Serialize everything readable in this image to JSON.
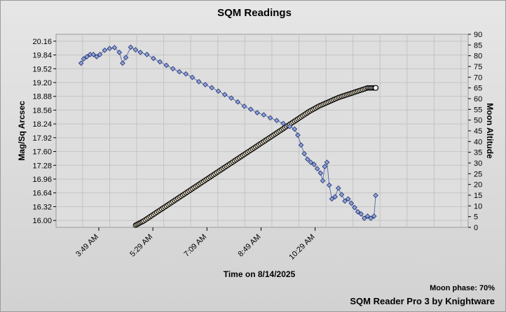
{
  "chart_data": {
    "type": "scatter",
    "title": "SQM Readings",
    "xlabel": "Time on 8/14/2025",
    "ylabel_left": "Mag/Sq Arcsec",
    "ylabel_right": "Moon Altitude",
    "x_ticks": [
      "3:49 AM",
      "5:29 AM",
      "7:09 AM",
      "8:49 AM",
      "10:29 AM"
    ],
    "y_left_ticks": [
      "20.16",
      "19.84",
      "19.52",
      "19.20",
      "18.88",
      "18.56",
      "18.24",
      "17.92",
      "17.60",
      "17.28",
      "16.96",
      "16.64",
      "16.32",
      "16.00"
    ],
    "y_left_range": [
      15.84,
      20.32
    ],
    "y_right_ticks": [
      "0",
      "5",
      "10",
      "15",
      "20",
      "25",
      "30",
      "35",
      "40",
      "45",
      "50",
      "55",
      "60",
      "65",
      "70",
      "75",
      "80",
      "85",
      "90"
    ],
    "y_right_range": [
      0,
      90
    ],
    "x_range_hours": [
      2.5,
      15.2
    ],
    "grid": true,
    "series": [
      {
        "axis": "left",
        "color": "#5b6fb0",
        "marker": "diamond",
        "points": [
          [
            3.27,
            19.65
          ],
          [
            3.35,
            19.75
          ],
          [
            3.45,
            19.8
          ],
          [
            3.55,
            19.85
          ],
          [
            3.65,
            19.85
          ],
          [
            3.75,
            19.8
          ],
          [
            3.85,
            19.85
          ],
          [
            4.0,
            19.95
          ],
          [
            4.15,
            19.99
          ],
          [
            4.3,
            20.01
          ],
          [
            4.45,
            19.9
          ],
          [
            4.55,
            19.65
          ],
          [
            4.65,
            19.78
          ],
          [
            4.8,
            20.02
          ],
          [
            4.95,
            19.96
          ],
          [
            5.1,
            19.9
          ],
          [
            5.3,
            19.85
          ],
          [
            5.5,
            19.76
          ],
          [
            5.7,
            19.68
          ],
          [
            5.9,
            19.6
          ],
          [
            6.1,
            19.52
          ],
          [
            6.3,
            19.45
          ],
          [
            6.5,
            19.4
          ],
          [
            6.7,
            19.32
          ],
          [
            6.9,
            19.22
          ],
          [
            7.1,
            19.15
          ],
          [
            7.3,
            19.08
          ],
          [
            7.5,
            19.0
          ],
          [
            7.7,
            18.92
          ],
          [
            7.9,
            18.84
          ],
          [
            8.1,
            18.75
          ],
          [
            8.3,
            18.65
          ],
          [
            8.5,
            18.58
          ],
          [
            8.7,
            18.5
          ],
          [
            8.9,
            18.45
          ],
          [
            9.1,
            18.38
          ],
          [
            9.3,
            18.32
          ],
          [
            9.5,
            18.25
          ],
          [
            9.7,
            18.18
          ],
          [
            9.85,
            18.12
          ],
          [
            9.95,
            17.98
          ],
          [
            10.05,
            17.75
          ],
          [
            10.15,
            17.55
          ],
          [
            10.25,
            17.42
          ],
          [
            10.35,
            17.35
          ],
          [
            10.45,
            17.3
          ],
          [
            10.55,
            17.2
          ],
          [
            10.65,
            17.1
          ],
          [
            10.72,
            16.92
          ],
          [
            10.78,
            17.25
          ],
          [
            10.85,
            17.35
          ],
          [
            10.92,
            16.82
          ],
          [
            11.0,
            16.5
          ],
          [
            11.1,
            16.55
          ],
          [
            11.2,
            16.75
          ],
          [
            11.3,
            16.6
          ],
          [
            11.4,
            16.45
          ],
          [
            11.5,
            16.5
          ],
          [
            11.6,
            16.4
          ],
          [
            11.7,
            16.3
          ],
          [
            11.8,
            16.2
          ],
          [
            11.9,
            16.15
          ],
          [
            12.0,
            16.05
          ],
          [
            12.1,
            16.1
          ],
          [
            12.2,
            16.05
          ],
          [
            12.3,
            16.1
          ],
          [
            12.35,
            16.58
          ]
        ]
      },
      {
        "axis": "right",
        "color": "#000000",
        "marker": "circle-halo",
        "points": [
          [
            4.95,
            1
          ],
          [
            5.2,
            3
          ],
          [
            5.5,
            6
          ],
          [
            5.8,
            9
          ],
          [
            6.1,
            12
          ],
          [
            6.4,
            15
          ],
          [
            6.7,
            18
          ],
          [
            7.0,
            21
          ],
          [
            7.3,
            24
          ],
          [
            7.6,
            27
          ],
          [
            7.9,
            30
          ],
          [
            8.2,
            33
          ],
          [
            8.5,
            36
          ],
          [
            8.8,
            39
          ],
          [
            9.1,
            42
          ],
          [
            9.4,
            45
          ],
          [
            9.7,
            48
          ],
          [
            10.0,
            51
          ],
          [
            10.3,
            54
          ],
          [
            10.6,
            56.5
          ],
          [
            10.9,
            58.5
          ],
          [
            11.2,
            60.5
          ],
          [
            11.5,
            62
          ],
          [
            11.8,
            63.5
          ],
          [
            12.1,
            65
          ],
          [
            12.35,
            65
          ]
        ]
      }
    ]
  },
  "footer": {
    "moon_phase": "Moon phase: 70%",
    "brand": "SQM Reader Pro 3 by Knightware"
  }
}
